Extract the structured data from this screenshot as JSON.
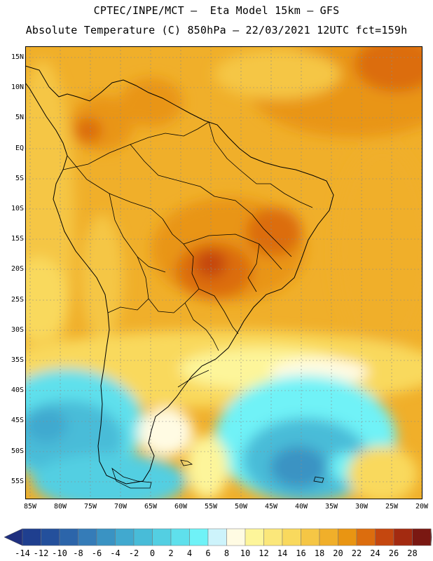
{
  "title": {
    "line1": "CPTEC/INPE/MCT –  Eta Model 15km – GFS",
    "line2": "Absolute Temperature (C) 850hPa – 22/03/2021 12UTC fct=159h"
  },
  "map": {
    "variable": "Absolute Temperature (C) 850hPa",
    "region": "South America",
    "lat_labels": [
      "15N",
      "10N",
      "5N",
      "EQ",
      "5S",
      "10S",
      "15S",
      "20S",
      "25S",
      "30S",
      "35S",
      "40S",
      "45S",
      "50S",
      "55S"
    ],
    "lon_labels": [
      "85W",
      "80W",
      "75W",
      "70W",
      "65W",
      "60W",
      "55W",
      "50W",
      "45W",
      "40W",
      "35W",
      "30W",
      "25W",
      "20W"
    ]
  },
  "colorbar": {
    "labels": [
      "-14",
      "-12",
      "-10",
      "-8",
      "-6",
      "-4",
      "-2",
      "0",
      "2",
      "4",
      "6",
      "8",
      "10",
      "12",
      "14",
      "16",
      "18",
      "20",
      "22",
      "24",
      "26",
      "28"
    ],
    "colors": [
      "#1f3f8f",
      "#24509c",
      "#2c65aa",
      "#357cb8",
      "#3a93c3",
      "#41a9cf",
      "#48bcd8",
      "#53cfe2",
      "#5fe0ec",
      "#6ff2f7",
      "#cdf3fb",
      "#fffbe3",
      "#fdf59a",
      "#fbe77a",
      "#f9d95d",
      "#f5c645",
      "#f0af2a",
      "#e99512",
      "#dc6d0e",
      "#c5470f",
      "#a32a10",
      "#7a1812"
    ],
    "arrow_low": "#1f2f7f",
    "arrow_high": "#6e0e24"
  }
}
